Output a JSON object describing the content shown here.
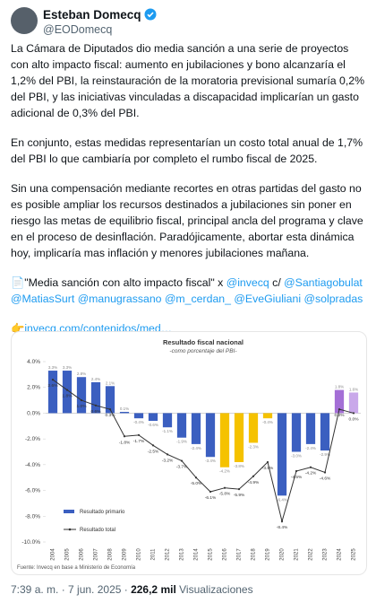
{
  "author": {
    "name": "Esteban Domecq",
    "handle": "@EODomecq"
  },
  "paragraphs": [
    "La Cámara de Diputados dio media sanción a una serie de proyectos con alto impacto fiscal: aumento en jubilaciones y bono alcanzaría el 1,2% del PBI, la reinstauración de la moratoria previsional sumaría 0,2% del PBI, y las iniciativas vinculadas a discapacidad implicarían un gasto adicional de 0,3% del PBI.",
    "En conjunto, estas medidas representarían un costo total anual de 1,7% del PBI lo que cambiaría por completo el rumbo fiscal de 2025.",
    "Sin una compensación mediante recortes en otras partidas del gasto no es posible ampliar los recursos destinados a jubilaciones sin poner en riesgo las metas de equilibrio fiscal,  principal ancla del programa y clave en el proceso de desinflación. Paradójicamente, abortar esta dinámica hoy, implicaría mas inflación y menores jubilaciones mañana."
  ],
  "mentions_line": [
    {
      "text": "📄\"Media sanción con alto impacto fiscal\" x ",
      "link": false
    },
    {
      "text": "@invecq",
      "link": true
    },
    {
      "text": " c/ ",
      "link": false
    },
    {
      "text": "@Santiagobulat",
      "link": true
    },
    {
      "text": " ",
      "link": false
    },
    {
      "text": "@MatiasSurt",
      "link": true
    },
    {
      "text": " ",
      "link": false
    },
    {
      "text": "@manugrassano",
      "link": true
    },
    {
      "text": " ",
      "link": false
    },
    {
      "text": "@m_cerdan_",
      "link": true
    },
    {
      "text": " ",
      "link": false
    },
    {
      "text": "@EveGiuliani",
      "link": true
    },
    {
      "text": " ",
      "link": false
    },
    {
      "text": "@solpradas",
      "link": true
    }
  ],
  "link_line": {
    "icon": "👉",
    "url": "invecq.com/contenidos/med…"
  },
  "chart_data": {
    "type": "bar_line",
    "title": "Resultado fiscal nacional",
    "subtitle": "-como porcentaje del PBI-",
    "categories": [
      "2004",
      "2005",
      "2006",
      "2007",
      "2008",
      "2009",
      "2010",
      "2011",
      "2012",
      "2013",
      "2014",
      "2015",
      "2016",
      "2017",
      "2018",
      "2019",
      "2020",
      "2021",
      "2022",
      "2023",
      "2024",
      "2025"
    ],
    "series": [
      {
        "name": "Resultado primario",
        "type": "bar",
        "color": "#3b5fc0",
        "colors": [
          "#3b5fc0",
          "#3b5fc0",
          "#3b5fc0",
          "#3b5fc0",
          "#3b5fc0",
          "#3b5fc0",
          "#3b5fc0",
          "#3b5fc0",
          "#3b5fc0",
          "#3b5fc0",
          "#3b5fc0",
          "#3b5fc0",
          "#f5c200",
          "#f5c200",
          "#f5c200",
          "#f5c200",
          "#3b5fc0",
          "#3b5fc0",
          "#3b5fc0",
          "#3b5fc0",
          "#a46fd6",
          "#c9a8ea"
        ],
        "values": [
          3.3,
          3.3,
          2.8,
          2.4,
          2.1,
          0.1,
          -0.4,
          -0.6,
          -1.1,
          -1.9,
          -2.4,
          -3.4,
          -4.2,
          -3.8,
          -2.3,
          -0.4,
          -6.4,
          -3.0,
          -2.4,
          -2.9,
          1.8,
          1.6
        ],
        "value_labels": [
          "3.3%",
          "3.3%",
          "2.8%",
          "2.4%",
          "2.1%",
          "0.1%",
          "-0.4%",
          "-0.6%",
          "-1.1%",
          "-1.9%",
          "-2.4%",
          "-3.4%",
          "-4.2%",
          "-3.8%",
          "-2.3%",
          "-0.4%",
          "-6.4%",
          "-3.0%",
          "-2.4%",
          "-2.9%",
          "1.8%",
          "1.6%"
        ]
      },
      {
        "name": "Resultado total",
        "type": "line",
        "color": "#333333",
        "values": [
          2.6,
          1.8,
          1.0,
          0.6,
          0.3,
          -1.8,
          -1.7,
          -2.5,
          -3.2,
          -3.7,
          -5.0,
          -6.1,
          -5.8,
          -5.9,
          -4.9,
          -3.8,
          -8.4,
          -4.5,
          -4.2,
          -4.6,
          0.3,
          0.0
        ],
        "value_labels": [
          "2.6%",
          "1.8%",
          "1.0%",
          "0.6%",
          "0.3%",
          "-1.8%",
          "-1.7%",
          "-2.5%",
          "-3.2%",
          "-3.7%",
          "-5.0%",
          "-6.1%",
          "-5.8%",
          "-5.9%",
          "-4.9%",
          "-3.8%",
          "-8.4%",
          "-4.5%",
          "-4.2%",
          "-4.6%",
          "0.3%",
          "0.0%"
        ]
      }
    ],
    "ylim": [
      -10,
      4
    ],
    "yticks": [
      {
        "value": 4,
        "label": "4.0%"
      },
      {
        "value": 2,
        "label": "2.0%"
      },
      {
        "value": 0,
        "label": "0.0%"
      },
      {
        "value": -2,
        "label": "-2.0%"
      },
      {
        "value": -4,
        "label": "-4.0%"
      },
      {
        "value": -6,
        "label": "-6.0%"
      },
      {
        "value": -8,
        "label": "-8.0%"
      },
      {
        "value": -10,
        "label": "-10.0%"
      }
    ],
    "source": "Fuente: Invecq en base a Ministerio de Economía"
  },
  "footer": {
    "time": "7:39 a. m. · 7 jun. 2025 · ",
    "views": "226,2 mil",
    "views_label": " Visualizaciones"
  }
}
